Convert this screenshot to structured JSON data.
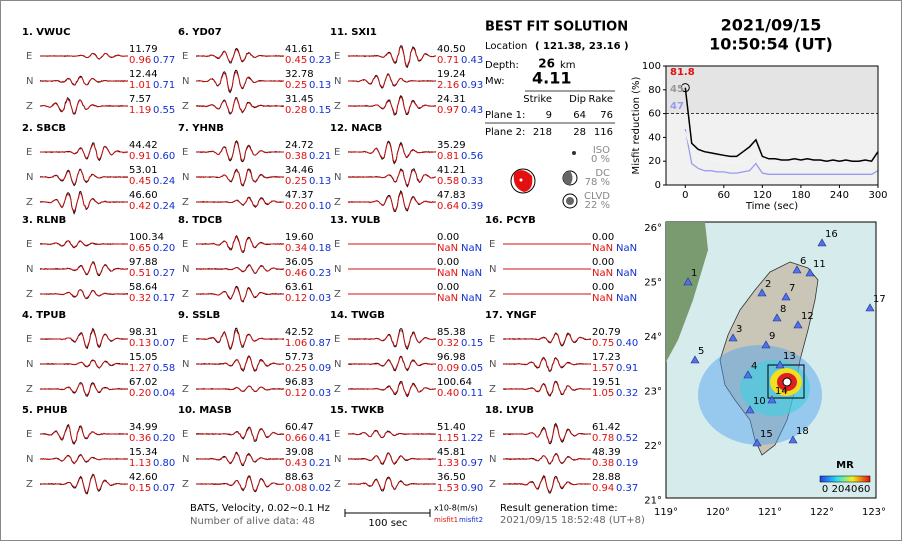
{
  "chart_data": {
    "type": "line",
    "xlabel": "Time (sec)",
    "ylabel": "Misfit reduction (%)",
    "xlim": [
      -30,
      300
    ],
    "ylim": [
      0,
      100
    ],
    "xticks": [
      0,
      60,
      120,
      180,
      240,
      300
    ],
    "yticks": [
      0,
      20,
      40,
      60,
      80,
      100
    ],
    "threshold": 60,
    "x": [
      0,
      10,
      20,
      30,
      40,
      50,
      60,
      70,
      80,
      90,
      100,
      110,
      120,
      130,
      140,
      150,
      160,
      170,
      180,
      190,
      200,
      210,
      220,
      230,
      240,
      250,
      260,
      270,
      280,
      290,
      300
    ],
    "series": [
      {
        "color": "#000000",
        "values": [
          81.8,
          35,
          30,
          28,
          27,
          26,
          25,
          24,
          24,
          28,
          32,
          38,
          24,
          22,
          22,
          21,
          21,
          22,
          21,
          22,
          21,
          21,
          20,
          21,
          20,
          21,
          20,
          20,
          21,
          20,
          28
        ]
      },
      {
        "color": "#f4f4f4",
        "values": [
          45,
          28,
          24,
          22,
          21,
          20,
          20,
          19,
          19,
          20,
          22,
          26,
          18,
          18,
          17,
          17,
          17,
          17,
          16,
          17,
          16,
          16,
          16,
          16,
          15,
          16,
          15,
          16,
          15,
          15,
          20
        ]
      },
      {
        "color": "#9a9af0",
        "values": [
          47,
          18,
          14,
          12,
          12,
          11,
          11,
          10,
          10,
          11,
          12,
          18,
          10,
          9,
          9,
          9,
          9,
          9,
          9,
          9,
          9,
          9,
          9,
          9,
          9,
          9,
          9,
          9,
          9,
          9,
          12
        ]
      }
    ],
    "annotations": [
      {
        "text": "81.8",
        "color": "#e01010"
      },
      {
        "text": "45",
        "color": "#999999"
      },
      {
        "text": "47",
        "color": "#9a9af0"
      }
    ]
  },
  "header": {
    "date": "2021/09/15",
    "time": "10:50:54  (UT)"
  },
  "solution": {
    "title": "BEST FIT SOLUTION",
    "location_label": "Location",
    "location": "( 121.38, 23.16 )",
    "depth_label": "Depth:",
    "depth": "26",
    "depth_unit": "km",
    "mw_label": "Mw:",
    "mw": "4.11",
    "columns": [
      "Strike",
      "Dip",
      "Rake"
    ],
    "planes": [
      [
        "Plane 1:",
        "9",
        "64",
        "76"
      ],
      [
        "Plane 2:",
        "218",
        "28",
        "116"
      ]
    ],
    "components": [
      [
        "ISO",
        "0 %"
      ],
      [
        "DC",
        "78 %"
      ],
      [
        "CLVD",
        "22 %"
      ]
    ]
  },
  "components": [
    "E",
    "N",
    "Z"
  ],
  "stations": [
    {
      "label": "1. VWUC",
      "rows": [
        [
          "11.79",
          "0.96",
          "0.77"
        ],
        [
          "12.44",
          "1.01",
          "0.71"
        ],
        [
          "7.57",
          "1.19",
          "0.55"
        ]
      ]
    },
    {
      "label": "2. SBCB",
      "rows": [
        [
          "44.42",
          "0.91",
          "0.60"
        ],
        [
          "53.01",
          "0.45",
          "0.24"
        ],
        [
          "46.60",
          "0.42",
          "0.24"
        ]
      ]
    },
    {
      "label": "3. RLNB",
      "rows": [
        [
          "100.34",
          "0.65",
          "0.20"
        ],
        [
          "97.88",
          "0.51",
          "0.27"
        ],
        [
          "58.64",
          "0.32",
          "0.17"
        ]
      ]
    },
    {
      "label": "4. TPUB",
      "rows": [
        [
          "98.31",
          "0.13",
          "0.07"
        ],
        [
          "15.05",
          "1.27",
          "0.58"
        ],
        [
          "67.02",
          "0.20",
          "0.04"
        ]
      ]
    },
    {
      "label": "5. PHUB",
      "rows": [
        [
          "34.99",
          "0.36",
          "0.20"
        ],
        [
          "15.34",
          "1.13",
          "0.80"
        ],
        [
          "42.60",
          "0.15",
          "0.07"
        ]
      ]
    },
    {
      "label": "6. YD07",
      "rows": [
        [
          "41.61",
          "0.45",
          "0.23"
        ],
        [
          "32.78",
          "0.25",
          "0.13"
        ],
        [
          "31.45",
          "0.28",
          "0.15"
        ]
      ]
    },
    {
      "label": "7. YHNB",
      "rows": [
        [
          "24.72",
          "0.38",
          "0.21"
        ],
        [
          "34.46",
          "0.25",
          "0.13"
        ],
        [
          "47.37",
          "0.20",
          "0.10"
        ]
      ]
    },
    {
      "label": "8. TDCB",
      "rows": [
        [
          "19.60",
          "0.34",
          "0.18"
        ],
        [
          "36.05",
          "0.46",
          "0.23"
        ],
        [
          "63.61",
          "0.12",
          "0.03"
        ]
      ]
    },
    {
      "label": "9. SSLB",
      "rows": [
        [
          "42.52",
          "1.06",
          "0.87"
        ],
        [
          "57.73",
          "0.25",
          "0.09"
        ],
        [
          "96.83",
          "0.12",
          "0.03"
        ]
      ]
    },
    {
      "label": "10. MASB",
      "rows": [
        [
          "60.47",
          "0.66",
          "0.41"
        ],
        [
          "39.08",
          "0.43",
          "0.21"
        ],
        [
          "88.63",
          "0.08",
          "0.02"
        ]
      ]
    },
    {
      "label": "11. SXI1",
      "rows": [
        [
          "40.50",
          "0.71",
          "0.43"
        ],
        [
          "19.24",
          "2.16",
          "0.93"
        ],
        [
          "24.31",
          "0.97",
          "0.43"
        ]
      ]
    },
    {
      "label": "12. NACB",
      "rows": [
        [
          "35.29",
          "0.81",
          "0.56"
        ],
        [
          "41.21",
          "0.58",
          "0.33"
        ],
        [
          "47.83",
          "0.64",
          "0.39"
        ]
      ]
    },
    {
      "label": "13. YULB",
      "rows": [
        [
          "0.00",
          "NaN",
          "NaN"
        ],
        [
          "0.00",
          "NaN",
          "NaN"
        ],
        [
          "0.00",
          "NaN",
          "NaN"
        ]
      ]
    },
    {
      "label": "14. TWGB",
      "rows": [
        [
          "85.38",
          "0.32",
          "0.15"
        ],
        [
          "96.98",
          "0.09",
          "0.05"
        ],
        [
          "100.64",
          "0.40",
          "0.11"
        ]
      ]
    },
    {
      "label": "15. TWKB",
      "rows": [
        [
          "51.40",
          "1.15",
          "1.22"
        ],
        [
          "45.81",
          "1.33",
          "0.97"
        ],
        [
          "36.50",
          "1.53",
          "0.90"
        ]
      ]
    },
    {
      "label": "16. PCYB",
      "rows": [
        [
          "0.00",
          "NaN",
          "NaN"
        ],
        [
          "0.00",
          "NaN",
          "NaN"
        ],
        [
          "0.00",
          "NaN",
          "NaN"
        ]
      ]
    },
    {
      "label": "17. YNGF",
      "rows": [
        [
          "20.79",
          "0.75",
          "0.40"
        ],
        [
          "17.23",
          "1.57",
          "0.91"
        ],
        [
          "19.51",
          "1.05",
          "0.32"
        ]
      ]
    },
    {
      "label": "18. LYUB",
      "rows": [
        [
          "61.42",
          "0.78",
          "0.52"
        ],
        [
          "48.39",
          "0.38",
          "0.19"
        ],
        [
          "28.88",
          "0.94",
          "0.37"
        ]
      ]
    }
  ],
  "footer": {
    "network": "BATS, Velocity, 0.02~0.1 Hz",
    "alive": "Number of alive data: 48",
    "scale": "100 sec",
    "units": "x10-8(m/s)",
    "misfit1": "misfit1",
    "misfit2": "misfit2",
    "generated_label": "Result generation time:",
    "generated": "2021/09/15 18:52:48 (UT+8)"
  },
  "map": {
    "lat_labels": [
      "26°",
      "25°",
      "24°",
      "23°",
      "22°",
      "21°"
    ],
    "lon_labels": [
      "119°",
      "120°",
      "121°",
      "122°",
      "123°"
    ],
    "station_labels": [
      "1",
      "2",
      "3",
      "4",
      "5",
      "6",
      "7",
      "8",
      "9",
      "10",
      "11",
      "12",
      "13",
      "14",
      "15",
      "16",
      "17",
      "18"
    ],
    "colorbar_title": "MR",
    "colorbar_ticks": [
      "0",
      "20",
      "40",
      "60"
    ]
  }
}
